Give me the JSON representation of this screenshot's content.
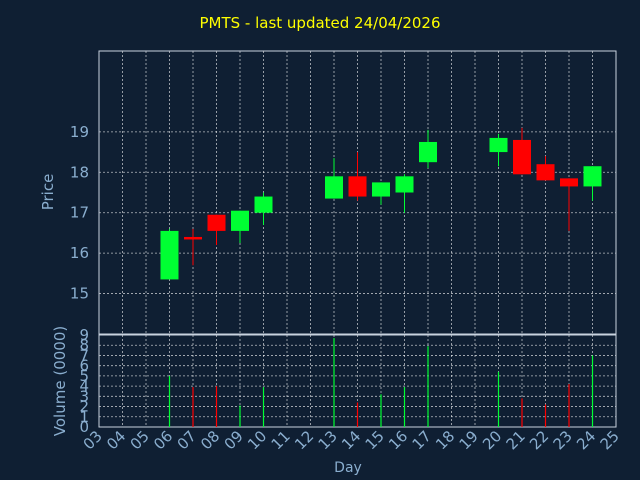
{
  "chart_data": {
    "type": "candlestick",
    "title": "PMTS - last updated 24/04/2026",
    "ylabel": "Price",
    "volume_ylabel": "Volume (0000)",
    "xlabel": "Day",
    "x_ticks": [
      "03",
      "04",
      "05",
      "06",
      "07",
      "08",
      "09",
      "10",
      "11",
      "12",
      "13",
      "14",
      "15",
      "16",
      "17",
      "18",
      "19",
      "20",
      "21",
      "22",
      "23",
      "24",
      "25"
    ],
    "y_ticks": [
      15,
      16,
      17,
      18,
      19
    ],
    "volume_ticks": [
      0,
      1,
      2,
      3,
      4,
      5,
      6,
      7,
      8,
      9
    ],
    "ylim": [
      14,
      21
    ],
    "volume_ylim": [
      0,
      9
    ],
    "grid": true,
    "colors": {
      "up": "#00ff33",
      "down": "#ff0000",
      "background": "#0f1f33",
      "title": "#ffff00",
      "grid": "#ffffff",
      "axis_text": "#8aaecf"
    },
    "candles": [
      {
        "day": "06",
        "open": 15.35,
        "close": 16.55,
        "high": 16.6,
        "low": 15.35,
        "volume": 5.0
      },
      {
        "day": "07",
        "open": 16.4,
        "close": 16.35,
        "high": 16.6,
        "low": 15.7,
        "volume": 3.9
      },
      {
        "day": "08",
        "open": 16.95,
        "close": 16.55,
        "high": 16.95,
        "low": 16.2,
        "volume": 4.0
      },
      {
        "day": "09",
        "open": 16.55,
        "close": 17.05,
        "high": 17.05,
        "low": 16.25,
        "volume": 2.1
      },
      {
        "day": "10",
        "open": 17.0,
        "close": 17.4,
        "high": 17.5,
        "low": 16.7,
        "volume": 3.9
      },
      {
        "day": "13",
        "open": 17.35,
        "close": 17.9,
        "high": 18.35,
        "low": 17.35,
        "volume": 8.7
      },
      {
        "day": "14",
        "open": 17.9,
        "close": 17.4,
        "high": 18.5,
        "low": 17.3,
        "volume": 2.4
      },
      {
        "day": "15",
        "open": 17.4,
        "close": 17.75,
        "high": 17.75,
        "low": 17.2,
        "volume": 3.2
      },
      {
        "day": "16",
        "open": 17.5,
        "close": 17.9,
        "high": 17.95,
        "low": 17.0,
        "volume": 3.9
      },
      {
        "day": "17",
        "open": 18.25,
        "close": 18.75,
        "high": 19.05,
        "low": 18.1,
        "volume": 7.9
      },
      {
        "day": "20",
        "open": 18.5,
        "close": 18.85,
        "high": 18.95,
        "low": 18.15,
        "volume": 5.4
      },
      {
        "day": "21",
        "open": 18.8,
        "close": 17.95,
        "high": 19.1,
        "low": 17.95,
        "volume": 2.8
      },
      {
        "day": "22",
        "open": 18.2,
        "close": 17.8,
        "high": 18.4,
        "low": 17.8,
        "volume": 2.2
      },
      {
        "day": "23",
        "open": 17.85,
        "close": 17.65,
        "high": 17.85,
        "low": 16.55,
        "volume": 4.2
      },
      {
        "day": "24",
        "open": 17.65,
        "close": 18.15,
        "high": 18.15,
        "low": 17.3,
        "volume": 7.0
      }
    ]
  }
}
